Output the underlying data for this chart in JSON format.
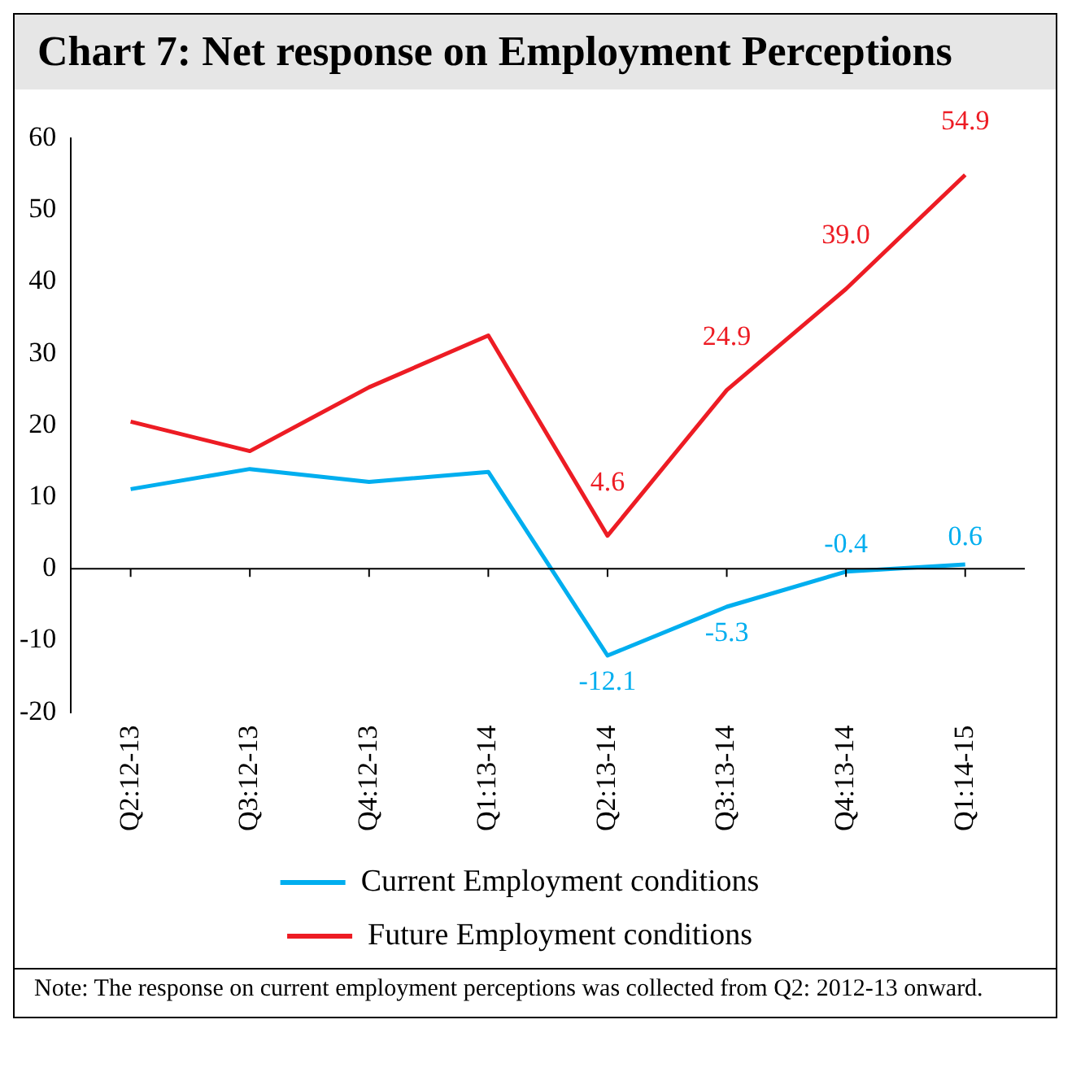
{
  "chart_data": {
    "type": "line",
    "title": "Chart 7: Net response on Employment Perceptions",
    "categories": [
      "Q2:12-13",
      "Q3:12-13",
      "Q4:12-13",
      "Q1:13-14",
      "Q2:13-14",
      "Q3:13-14",
      "Q4:13-14",
      "Q1:14-15"
    ],
    "series": [
      {
        "name": "Current Employment conditions",
        "color": "#00aeef",
        "values": [
          11.1,
          13.9,
          12.1,
          13.5,
          -12.1,
          -5.3,
          -0.4,
          0.6
        ],
        "value_labels": [
          null,
          null,
          null,
          null,
          "-12.1",
          "-5.3",
          "-0.4",
          "0.6"
        ]
      },
      {
        "name": "Future Employment conditions",
        "color": "#ed1c24",
        "values": [
          20.5,
          16.4,
          25.3,
          32.5,
          4.6,
          24.9,
          39.0,
          54.9
        ],
        "value_labels": [
          null,
          null,
          null,
          null,
          "4.6",
          "24.9",
          "39.0",
          "54.9"
        ]
      }
    ],
    "ylim": [
      -20,
      60
    ],
    "yticks": [
      -20,
      -10,
      0,
      10,
      20,
      30,
      40,
      50,
      60
    ],
    "grid": false,
    "legend": "bottom",
    "marker": "none",
    "line_style": "solid",
    "ref_lines": [
      {
        "axis": "y",
        "value": 0,
        "color": "#000000"
      }
    ],
    "annotations": [
      "Note: The response on current employment perceptions was collected from Q2: 2012-13 onward."
    ]
  }
}
